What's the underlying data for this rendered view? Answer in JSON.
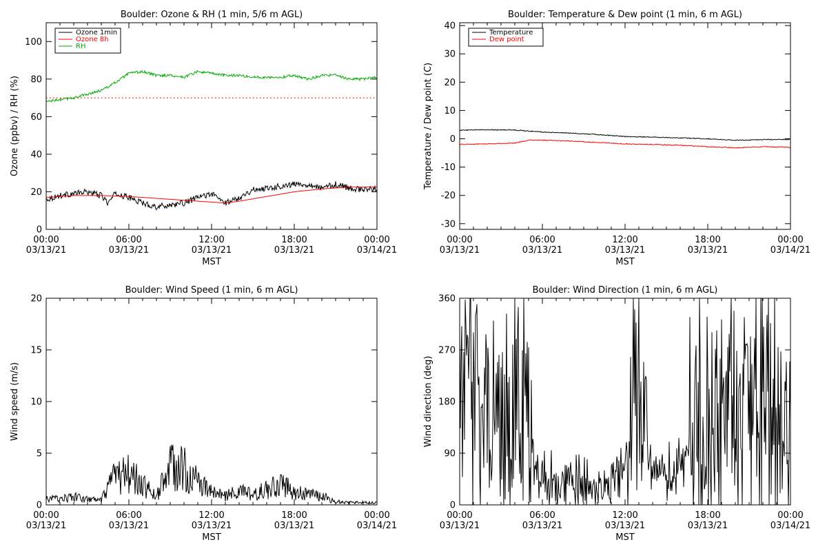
{
  "chart_data": [
    {
      "type": "line",
      "title": "Boulder: Ozone & RH (1 min, 5/6 m AGL)",
      "xlabel": "MST",
      "ylabel": "Ozone (ppbv) / RH (%)",
      "xlim": [
        "03/13/21 00:00",
        "03/14/21 00:00"
      ],
      "ylim": [
        0,
        110
      ],
      "yticks": [
        0,
        20,
        40,
        60,
        80,
        100
      ],
      "xtick_time_labels": [
        "00:00",
        "06:00",
        "12:00",
        "18:00",
        "00:00"
      ],
      "xtick_date_labels": [
        "03/13/21",
        "03/13/21",
        "03/13/21",
        "03/13/21",
        "03/14/21"
      ],
      "legend_position": "top-left",
      "reference_lines": [
        {
          "y": 70,
          "color": "#ff0000",
          "style": "dotted"
        }
      ],
      "series": [
        {
          "name": "Ozone 1min",
          "color": "#000000",
          "x": [
            "03/13/21 00:00",
            "03/13/21 01:00",
            "03/13/21 02:00",
            "03/13/21 03:00",
            "03/13/21 04:00",
            "03/13/21 04:30",
            "03/13/21 05:00",
            "03/13/21 06:00",
            "03/13/21 07:00",
            "03/13/21 08:00",
            "03/13/21 09:00",
            "03/13/21 10:00",
            "03/13/21 11:00",
            "03/13/21 12:00",
            "03/13/21 13:00",
            "03/13/21 14:00",
            "03/13/21 15:00",
            "03/13/21 16:00",
            "03/13/21 17:00",
            "03/13/21 18:00",
            "03/13/21 19:00",
            "03/13/21 20:00",
            "03/13/21 21:00",
            "03/13/21 22:00",
            "03/13/21 23:00",
            "03/14/21 00:00"
          ],
          "values": [
            16,
            18,
            19,
            20,
            18,
            14,
            19,
            17,
            14,
            12,
            13,
            14,
            17,
            19,
            14,
            17,
            21,
            22,
            23,
            24,
            24,
            22,
            24,
            22,
            21,
            22
          ]
        },
        {
          "name": "Ozone 8h",
          "color": "#ff0000",
          "x": [
            "03/13/21 00:00",
            "03/13/21 02:00",
            "03/13/21 04:00",
            "03/13/21 06:00",
            "03/13/21 08:00",
            "03/13/21 10:00",
            "03/13/21 12:00",
            "03/13/21 13:00",
            "03/13/21 14:00",
            "03/13/21 16:00",
            "03/13/21 18:00",
            "03/13/21 20:00",
            "03/13/21 22:00",
            "03/14/21 00:00"
          ],
          "values": [
            17,
            18,
            18,
            17.5,
            16.5,
            15.5,
            14.5,
            14,
            15,
            17.5,
            20,
            21.5,
            22.5,
            22.5
          ]
        },
        {
          "name": "RH",
          "color": "#00aa00",
          "x": [
            "03/13/21 00:00",
            "03/13/21 01:00",
            "03/13/21 02:00",
            "03/13/21 03:00",
            "03/13/21 04:00",
            "03/13/21 05:00",
            "03/13/21 06:00",
            "03/13/21 07:00",
            "03/13/21 08:00",
            "03/13/21 09:00",
            "03/13/21 10:00",
            "03/13/21 11:00",
            "03/13/21 12:00",
            "03/13/21 13:00",
            "03/13/21 14:00",
            "03/13/21 15:00",
            "03/13/21 16:00",
            "03/13/21 17:00",
            "03/13/21 18:00",
            "03/13/21 19:00",
            "03/13/21 20:00",
            "03/13/21 21:00",
            "03/13/21 22:00",
            "03/13/21 23:00",
            "03/14/21 00:00"
          ],
          "values": [
            68,
            69,
            70,
            72,
            74,
            78,
            83,
            84,
            82,
            82,
            81,
            84,
            83,
            82,
            82,
            81,
            81,
            81,
            82,
            80,
            82,
            82,
            80,
            80,
            81
          ]
        }
      ]
    },
    {
      "type": "line",
      "title": "Boulder: Temperature & Dew point (1 min, 6 m AGL)",
      "xlabel": "MST",
      "ylabel": "Temperature / Dew point (C)",
      "xlim": [
        "03/13/21 00:00",
        "03/14/21 00:00"
      ],
      "ylim": [
        -32,
        41
      ],
      "yticks": [
        -30,
        -20,
        -10,
        0,
        10,
        20,
        30,
        40
      ],
      "xtick_time_labels": [
        "00:00",
        "06:00",
        "12:00",
        "18:00",
        "00:00"
      ],
      "xtick_date_labels": [
        "03/13/21",
        "03/13/21",
        "03/13/21",
        "03/13/21",
        "03/14/21"
      ],
      "legend_position": "top-left",
      "series": [
        {
          "name": "Temperature",
          "color": "#000000",
          "x": [
            "03/13/21 00:00",
            "03/13/21 02:00",
            "03/13/21 04:00",
            "03/13/21 06:00",
            "03/13/21 08:00",
            "03/13/21 10:00",
            "03/13/21 12:00",
            "03/13/21 14:00",
            "03/13/21 16:00",
            "03/13/21 18:00",
            "03/13/21 20:00",
            "03/13/21 22:00",
            "03/14/21 00:00"
          ],
          "values": [
            3,
            3.2,
            3.1,
            2.4,
            2,
            1.5,
            0.8,
            0.6,
            0.3,
            0,
            -0.5,
            -0.3,
            -0.2
          ]
        },
        {
          "name": "Dew point",
          "color": "#ff0000",
          "x": [
            "03/13/21 00:00",
            "03/13/21 02:00",
            "03/13/21 04:00",
            "03/13/21 05:00",
            "03/13/21 06:00",
            "03/13/21 08:00",
            "03/13/21 10:00",
            "03/13/21 12:00",
            "03/13/21 14:00",
            "03/13/21 16:00",
            "03/13/21 18:00",
            "03/13/21 20:00",
            "03/13/21 22:00",
            "03/14/21 00:00"
          ],
          "values": [
            -2,
            -1.8,
            -1.5,
            -0.5,
            -0.5,
            -0.8,
            -1.3,
            -1.8,
            -2,
            -2.3,
            -2.8,
            -3.2,
            -2.8,
            -3
          ]
        }
      ]
    },
    {
      "type": "line",
      "title": "Boulder: Wind Speed (1 min, 6 m AGL)",
      "xlabel": "MST",
      "ylabel": "Wind speed (m/s)",
      "xlim": [
        "03/13/21 00:00",
        "03/14/21 00:00"
      ],
      "ylim": [
        0,
        20
      ],
      "yticks": [
        0,
        5,
        10,
        15,
        20
      ],
      "xtick_time_labels": [
        "00:00",
        "06:00",
        "12:00",
        "18:00",
        "00:00"
      ],
      "xtick_date_labels": [
        "03/13/21",
        "03/13/21",
        "03/13/21",
        "03/13/21",
        "03/14/21"
      ],
      "series": [
        {
          "color": "#000000",
          "x": [
            "03/13/21 00:00",
            "03/13/21 01:00",
            "03/13/21 02:00",
            "03/13/21 03:00",
            "03/13/21 04:00",
            "03/13/21 05:00",
            "03/13/21 06:00",
            "03/13/21 07:00",
            "03/13/21 08:00",
            "03/13/21 09:00",
            "03/13/21 10:00",
            "03/13/21 11:00",
            "03/13/21 12:00",
            "03/13/21 13:00",
            "03/13/21 14:00",
            "03/13/21 15:00",
            "03/13/21 16:00",
            "03/13/21 17:00",
            "03/13/21 18:00",
            "03/13/21 19:00",
            "03/13/21 20:00",
            "03/13/21 21:00",
            "03/13/21 22:00",
            "03/13/21 23:00",
            "03/14/21 00:00"
          ],
          "values": [
            0.5,
            0.6,
            0.7,
            0.5,
            0.4,
            2.5,
            2.8,
            1.8,
            0.8,
            3.5,
            3.2,
            2,
            1.2,
            0.8,
            1.2,
            0.9,
            1.4,
            1.8,
            1.2,
            0.9,
            0.8,
            0.3,
            0.2,
            0.2,
            0.2
          ]
        }
      ]
    },
    {
      "type": "line",
      "title": "Boulder: Wind Direction (1 min, 6 m AGL)",
      "xlabel": "MST",
      "ylabel": "Wind direction (deg)",
      "xlim": [
        "03/13/21 00:00",
        "03/14/21 00:00"
      ],
      "ylim": [
        0,
        360
      ],
      "yticks": [
        0,
        90,
        180,
        270,
        360
      ],
      "xtick_time_labels": [
        "00:00",
        "06:00",
        "12:00",
        "18:00",
        "00:00"
      ],
      "xtick_date_labels": [
        "03/13/21",
        "03/13/21",
        "03/13/21",
        "03/13/21",
        "03/14/21"
      ],
      "series": [
        {
          "color": "#000000",
          "x": [
            "03/13/21 00:00",
            "03/13/21 01:00",
            "03/13/21 02:00",
            "03/13/21 03:00",
            "03/13/21 04:00",
            "03/13/21 05:00",
            "03/13/21 06:00",
            "03/13/21 07:00",
            "03/13/21 08:00",
            "03/13/21 09:00",
            "03/13/21 10:00",
            "03/13/21 11:00",
            "03/13/21 12:00",
            "03/13/21 13:00",
            "03/13/21 14:00",
            "03/13/21 15:00",
            "03/13/21 16:00",
            "03/13/21 17:00",
            "03/13/21 18:00",
            "03/13/21 19:00",
            "03/13/21 20:00",
            "03/13/21 21:00",
            "03/13/21 22:00",
            "03/13/21 23:00",
            "03/14/21 00:00"
          ],
          "values": [
            200,
            240,
            180,
            150,
            200,
            120,
            40,
            35,
            50,
            30,
            30,
            40,
            80,
            200,
            60,
            50,
            60,
            130,
            180,
            160,
            170,
            120,
            170,
            160,
            150
          ]
        }
      ]
    }
  ]
}
